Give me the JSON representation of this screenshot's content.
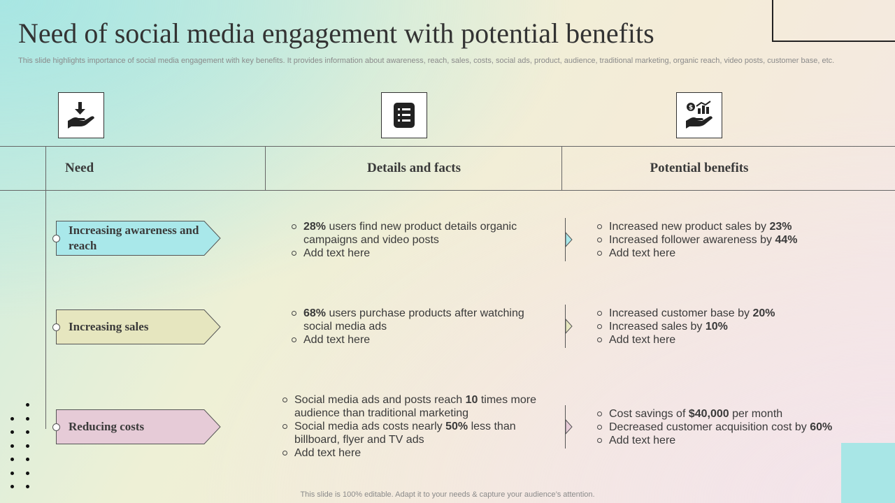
{
  "title": "Need of social media engagement with potential benefits",
  "subtitle": "This slide highlights importance of social media engagement with key benefits. It provides information about awareness, reach, sales, costs, social ads, product, audience, traditional marketing, organic reach, video posts, customer base, etc.",
  "columns": {
    "need": "Need",
    "details": "Details and facts",
    "benefits": "Potential benefits"
  },
  "icons": [
    "hand-receive-icon",
    "document-list-icon",
    "money-growth-hand-icon"
  ],
  "rows": [
    {
      "need": "Increasing awareness and reach",
      "color": "#a9e8ea",
      "details": [
        {
          "pre": "",
          "bold": "28%",
          "post": " users find new product details organic campaigns and video posts"
        },
        {
          "pre": "Add text here",
          "bold": "",
          "post": ""
        }
      ],
      "benefits": [
        {
          "pre": "Increased new product sales by ",
          "bold": "23%",
          "post": ""
        },
        {
          "pre": "Increased follower awareness by ",
          "bold": "44%",
          "post": ""
        },
        {
          "pre": "Add text here",
          "bold": "",
          "post": ""
        }
      ]
    },
    {
      "need": "Increasing sales",
      "color": "#e6e6bf",
      "details": [
        {
          "pre": "",
          "bold": "68%",
          "post": " users purchase products after watching social media ads"
        },
        {
          "pre": "Add text here",
          "bold": "",
          "post": ""
        }
      ],
      "benefits": [
        {
          "pre": "Increased customer base by ",
          "bold": "20%",
          "post": ""
        },
        {
          "pre": "Increased sales by ",
          "bold": "10%",
          "post": ""
        },
        {
          "pre": "Add text here",
          "bold": "",
          "post": ""
        }
      ]
    },
    {
      "need": "Reducing costs",
      "color": "#e6cbd7",
      "details": [
        {
          "pre": "Social media ads and posts reach ",
          "bold": "10",
          "post": " times more audience than traditional marketing"
        },
        {
          "pre": "Social media ads costs nearly ",
          "bold": "50%",
          "post": " less than billboard, flyer and TV ads"
        },
        {
          "pre": "Add text here",
          "bold": "",
          "post": ""
        }
      ],
      "benefits": [
        {
          "pre": "Cost savings of ",
          "bold": "$40,000",
          "post": " per month"
        },
        {
          "pre": "Decreased customer acquisition cost by ",
          "bold": "60%",
          "post": ""
        },
        {
          "pre": "Add text here",
          "bold": "",
          "post": ""
        }
      ]
    }
  ],
  "footer": "This slide is 100% editable. Adapt it to your needs & capture your audience’s attention."
}
